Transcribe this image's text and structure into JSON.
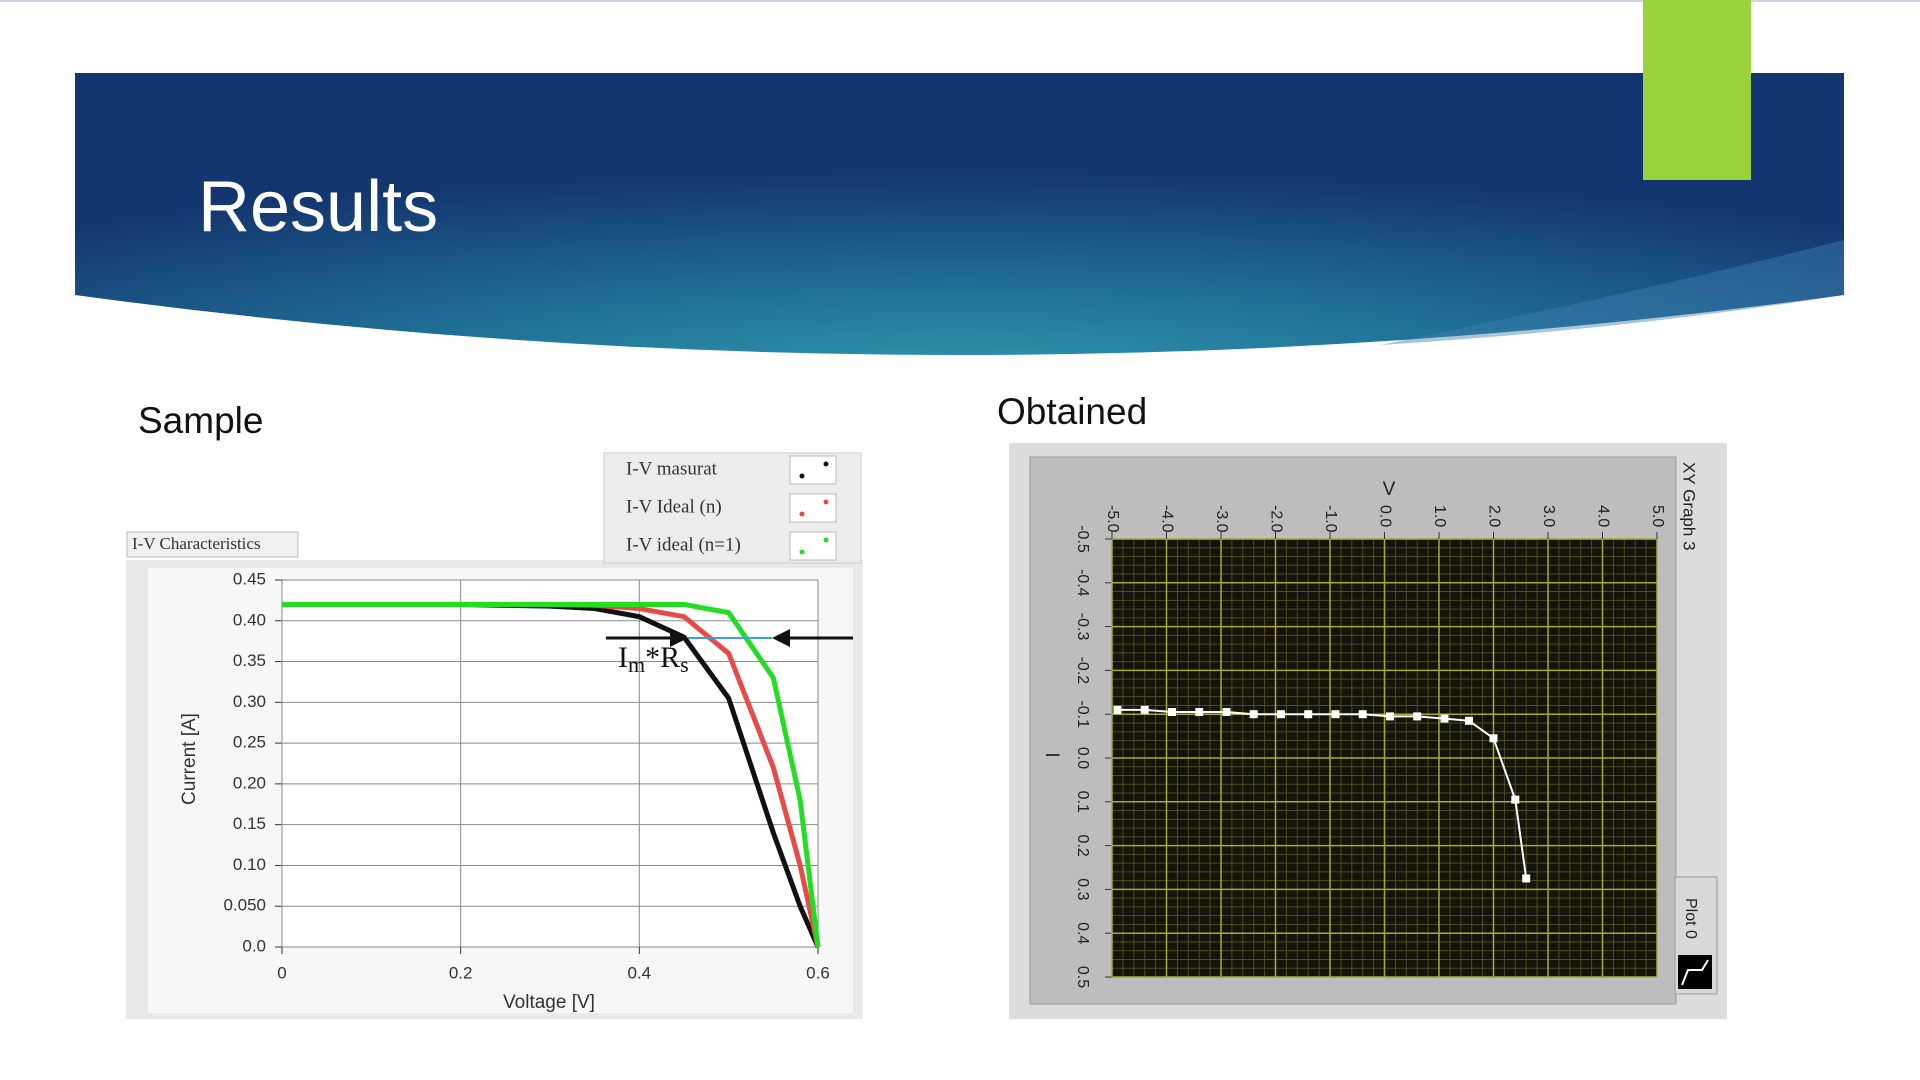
{
  "slide": {
    "title": "Results",
    "labels": [
      "Sample",
      "Obtained"
    ]
  },
  "chart_data": [
    {
      "type": "line",
      "title": "I-V Characteristics",
      "x_label": "Voltage [V]",
      "y_label": "Current [A]",
      "annotation_parts": [
        "I",
        "m",
        "*R",
        "s"
      ],
      "x": [
        0,
        0.1,
        0.2,
        0.3,
        0.35,
        0.4,
        0.45,
        0.5,
        0.55,
        0.58,
        0.6
      ],
      "series": [
        {
          "name": "I-V masurat",
          "color": "#111111",
          "values": [
            0.42,
            0.42,
            0.42,
            0.418,
            0.415,
            0.405,
            0.38,
            0.305,
            0.14,
            0.05,
            0
          ]
        },
        {
          "name": "I-V Ideal (n)",
          "color": "#e84a4a",
          "values": [
            0.42,
            0.42,
            0.42,
            0.42,
            0.419,
            0.415,
            0.405,
            0.36,
            0.22,
            0.1,
            0
          ]
        },
        {
          "name": "I-V ideal (n=1)",
          "color": "#22dd22",
          "values": [
            0.42,
            0.42,
            0.42,
            0.42,
            0.42,
            0.42,
            0.42,
            0.41,
            0.33,
            0.18,
            0
          ]
        }
      ],
      "xlim": [
        0,
        0.6
      ],
      "ylim": [
        0,
        0.45
      ],
      "xticks": [
        0,
        0.2,
        0.4,
        0.6
      ],
      "yticks": [
        0.45,
        {
          "value": 0.4,
          "label": "0.40"
        },
        0.35,
        {
          "value": 0.3,
          "label": "0.30"
        },
        0.25,
        {
          "value": 0.2,
          "label": "0.20"
        },
        0.15,
        {
          "value": 0.1,
          "label": "0.10"
        },
        {
          "value": 0.05,
          "label": "0.050"
        },
        {
          "value": 0,
          "label": "0.0"
        }
      ],
      "grid": true,
      "legend": "top-right"
    },
    {
      "type": "line",
      "title": "XY Graph 3",
      "x_label": "V",
      "y_label": "I",
      "x": [
        -4.9,
        -4.4,
        -3.9,
        -3.4,
        -2.9,
        -2.4,
        -1.9,
        -1.4,
        -0.9,
        -0.4,
        0.1,
        0.6,
        1.1,
        1.55,
        2.0,
        2.4,
        2.6
      ],
      "series": [
        {
          "name": "Plot 0",
          "color": "#ffffff",
          "values": [
            -0.11,
            -0.11,
            -0.105,
            -0.105,
            -0.105,
            -0.1,
            -0.1,
            -0.1,
            -0.1,
            -0.1,
            -0.095,
            -0.095,
            -0.09,
            -0.085,
            -0.045,
            0.095,
            0.275
          ]
        }
      ],
      "xlim": [
        -5,
        5
      ],
      "ylim": [
        -0.5,
        0.5
      ],
      "y_reversed": true,
      "xticks": [
        {
          "value": -5,
          "label": "-5.0"
        },
        {
          "value": -4,
          "label": "-4.0"
        },
        {
          "value": -3,
          "label": "-3.0"
        },
        {
          "value": -2,
          "label": "-2.0"
        },
        {
          "value": -1,
          "label": "-1.0"
        },
        {
          "value": 0,
          "label": "0.0"
        },
        {
          "value": 1,
          "label": "1.0"
        },
        {
          "value": 2,
          "label": "2.0"
        },
        {
          "value": 3,
          "label": "3.0"
        },
        {
          "value": 4,
          "label": "4.0"
        },
        {
          "value": 5,
          "label": "5.0"
        }
      ],
      "yticks": [
        -0.5,
        -0.4,
        -0.3,
        -0.2,
        -0.1,
        {
          "value": 0,
          "label": "0.0"
        },
        0.1,
        0.2,
        0.3,
        0.4,
        0.5
      ],
      "grid": true,
      "legend": "bottom-right"
    }
  ]
}
